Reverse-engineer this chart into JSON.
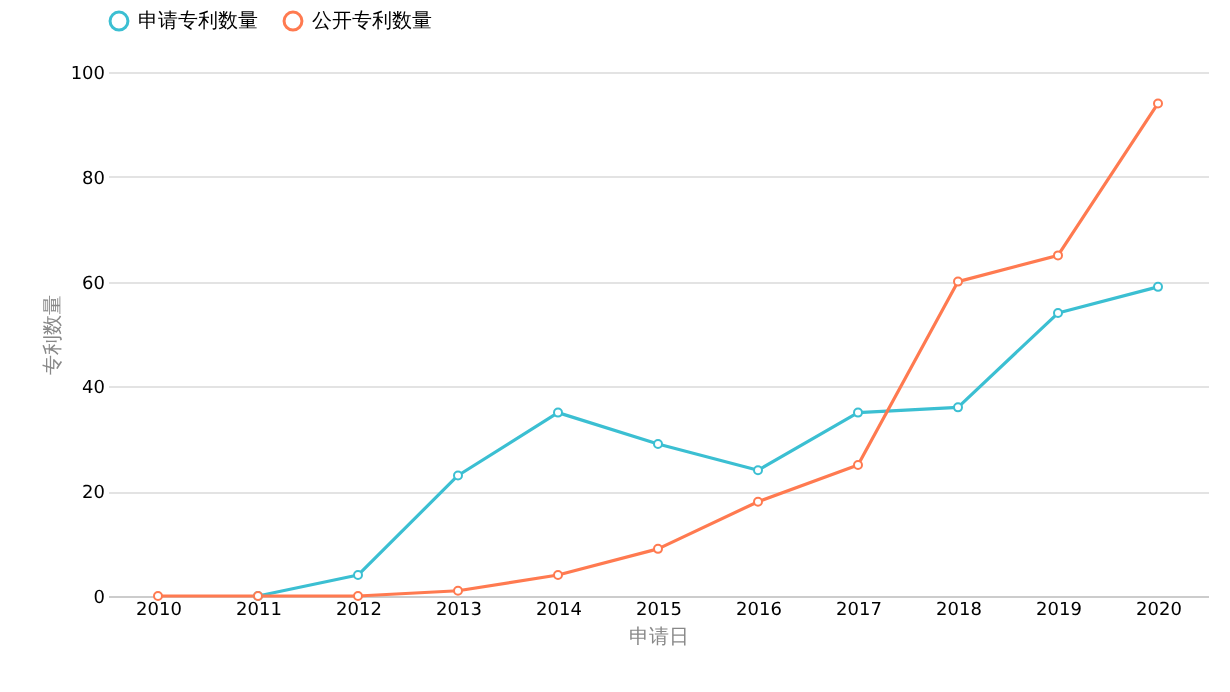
{
  "chart_data": {
    "type": "line",
    "xlabel": "申请日",
    "ylabel": "专利数量",
    "categories": [
      "2010",
      "2011",
      "2012",
      "2013",
      "2014",
      "2015",
      "2016",
      "2017",
      "2018",
      "2019",
      "2020"
    ],
    "series": [
      {
        "name": "申请专利数量",
        "color": "#3bbfd2",
        "values": [
          null,
          0,
          4,
          23,
          35,
          29,
          24,
          35,
          36,
          54,
          59
        ]
      },
      {
        "name": "公开专利数量",
        "color": "#ff7a50",
        "values": [
          0,
          0,
          0,
          1,
          4,
          9,
          18,
          25,
          60,
          65,
          94
        ]
      }
    ],
    "ylim": [
      0,
      100
    ],
    "yticks": [
      0,
      20,
      40,
      60,
      80,
      100
    ],
    "grid": "y",
    "legend": "top",
    "marker": "circle",
    "line_style": "solid"
  }
}
